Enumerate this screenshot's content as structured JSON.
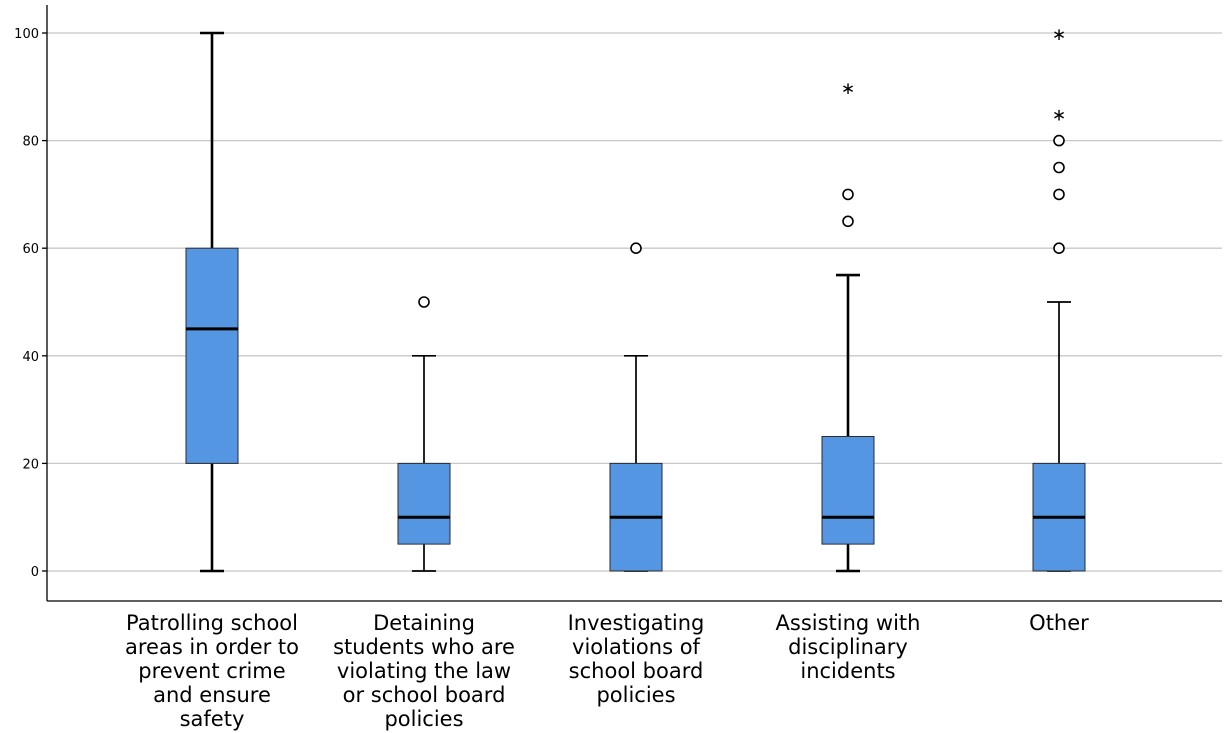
{
  "chart_data": {
    "type": "box",
    "title": "",
    "xlabel": "",
    "ylabel": "",
    "ylim": [
      -5,
      105
    ],
    "yticks": [
      0,
      20,
      40,
      60,
      80,
      100
    ],
    "grid": true,
    "legend": "none",
    "box_color": "#5596e3",
    "categories": [
      [
        "Patrolling school",
        "areas in order to",
        "prevent crime",
        "and ensure",
        "safety"
      ],
      [
        "Detaining",
        "students who are",
        "violating the law",
        "or school board",
        "policies"
      ],
      [
        "Investigating",
        "violations of",
        "school board",
        "policies"
      ],
      [
        "Assisting with",
        "disciplinary",
        "incidents"
      ],
      [
        "Other"
      ]
    ],
    "boxes": [
      {
        "whisker_low": 0,
        "q1": 20,
        "median": 45,
        "q3": 60,
        "whisker_high": 100,
        "outliers": [],
        "extremes": []
      },
      {
        "whisker_low": 0,
        "q1": 5,
        "median": 10,
        "q3": 20,
        "whisker_high": 40,
        "outliers": [
          50
        ],
        "extremes": []
      },
      {
        "whisker_low": 0,
        "q1": 0,
        "median": 10,
        "q3": 20,
        "whisker_high": 40,
        "outliers": [
          60
        ],
        "extremes": []
      },
      {
        "whisker_low": 0,
        "q1": 5,
        "median": 10,
        "q3": 25,
        "whisker_high": 55,
        "outliers": [
          65,
          70
        ],
        "extremes": [
          90
        ]
      },
      {
        "whisker_low": 0,
        "q1": 0,
        "median": 10,
        "q3": 20,
        "whisker_high": 50,
        "outliers": [
          60,
          70,
          75,
          80
        ],
        "extremes": [
          85,
          100
        ]
      }
    ]
  }
}
